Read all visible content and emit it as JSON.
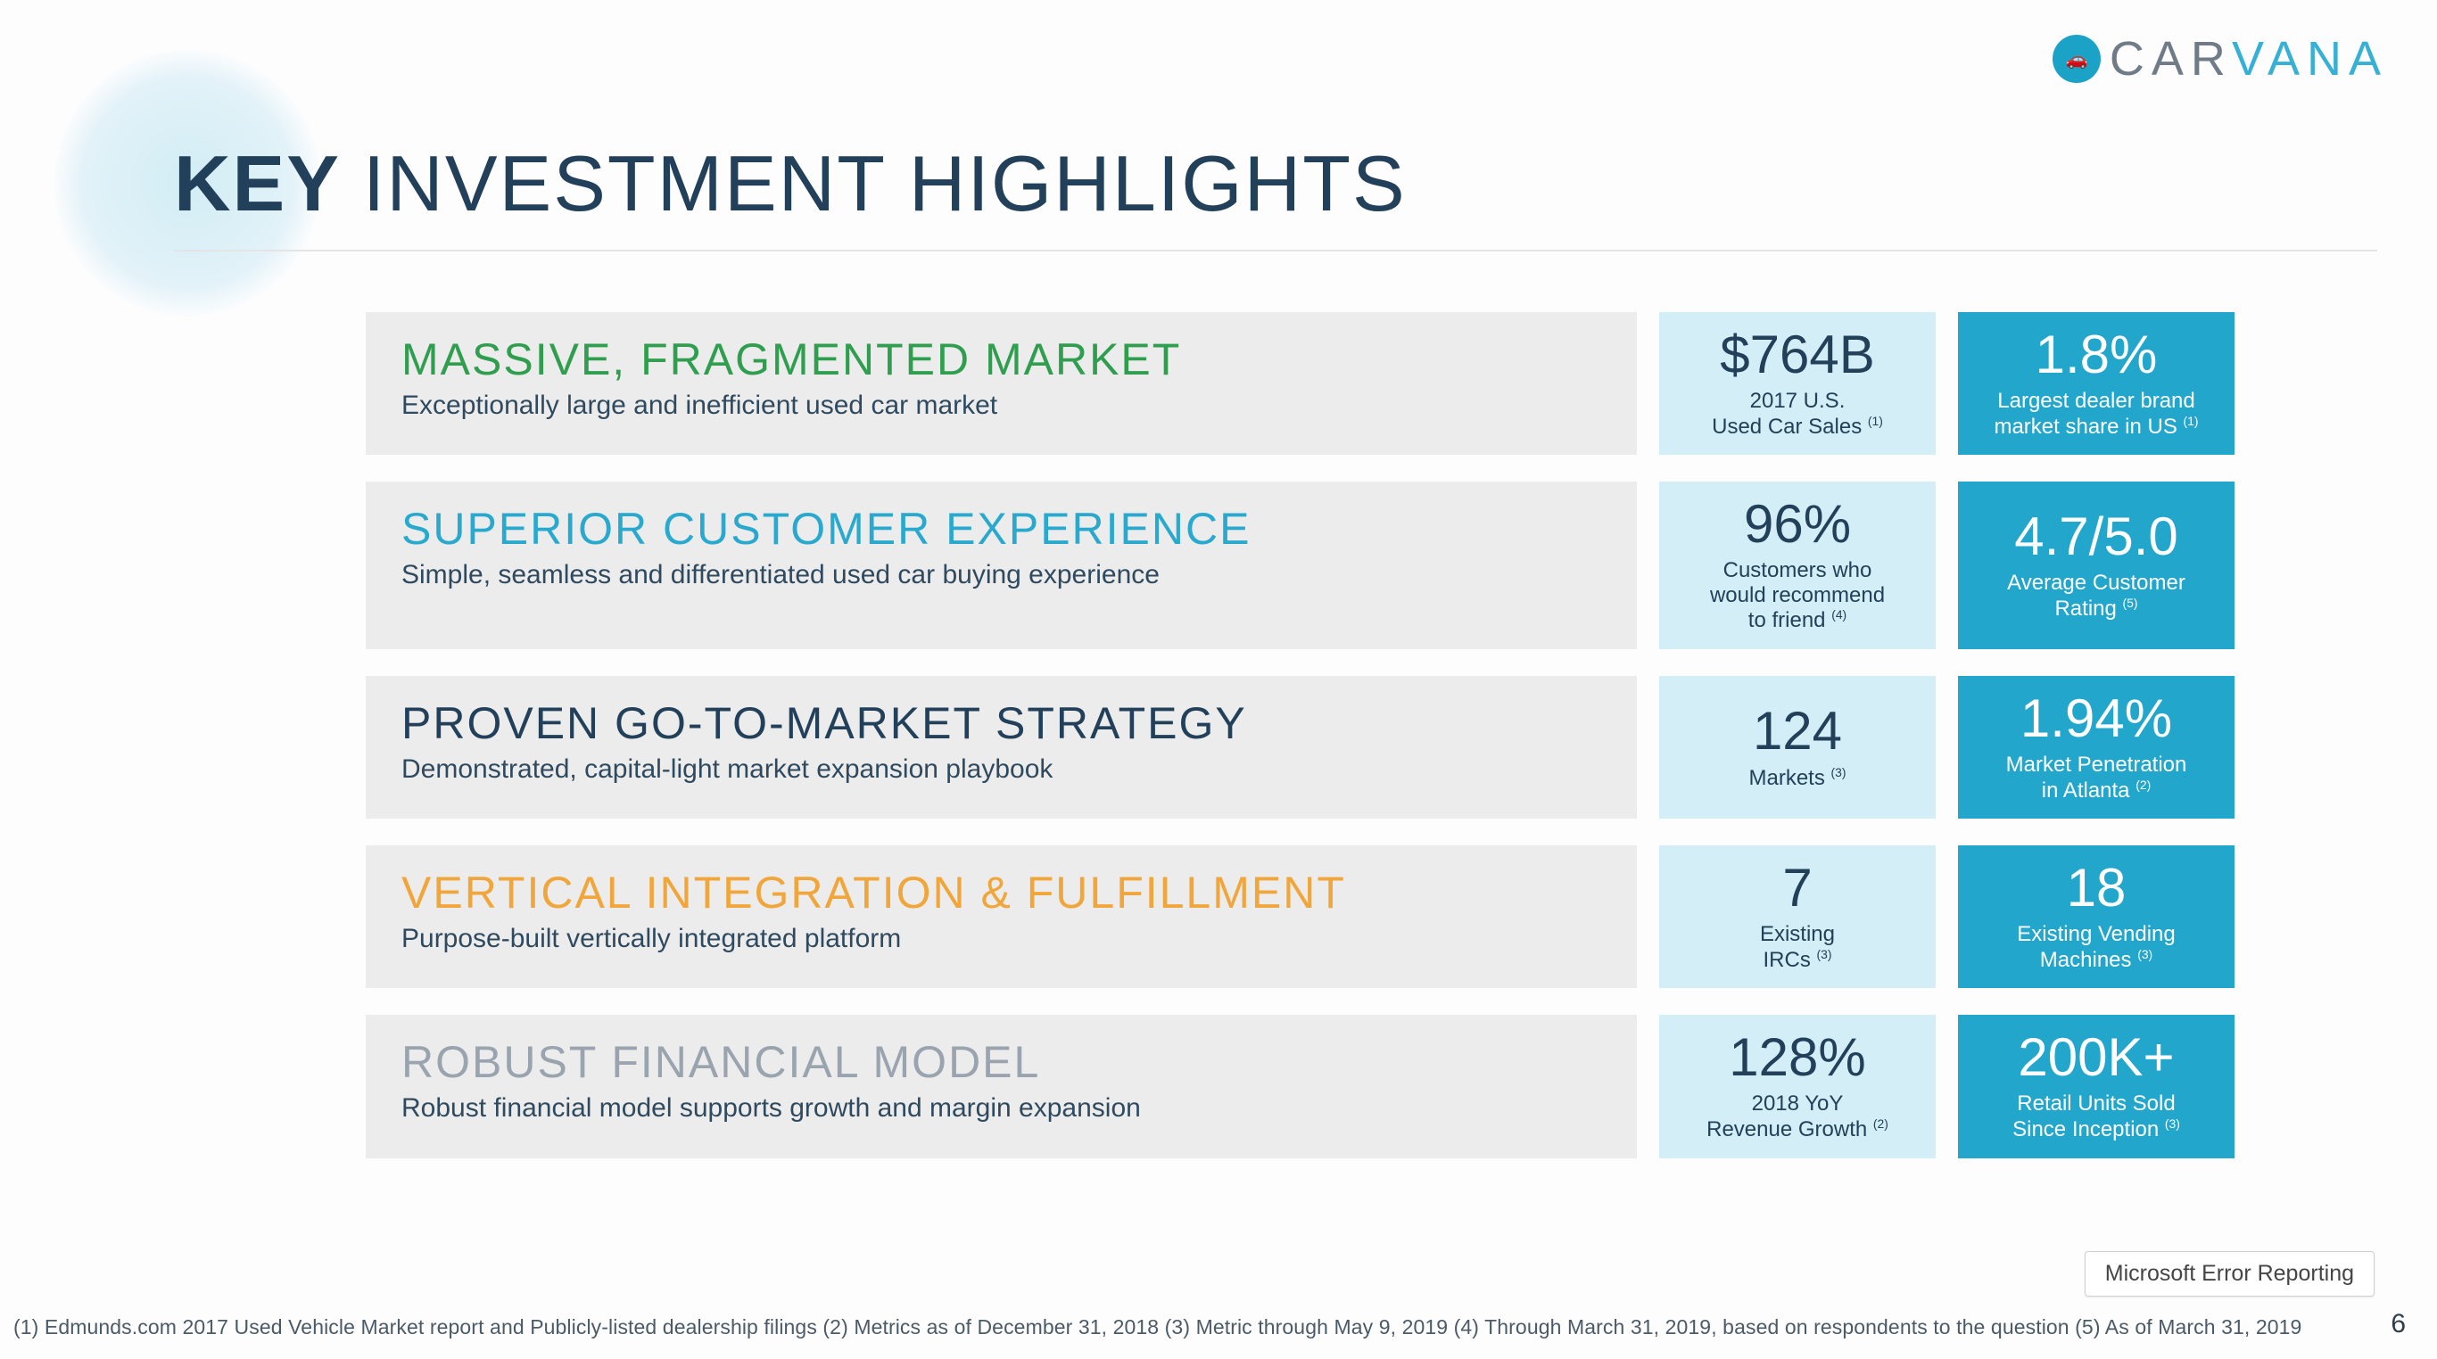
{
  "brand": {
    "name_gray": "CAR",
    "name_blue": "VANA"
  },
  "page_title": {
    "bold": "KEY ",
    "rest": "INVESTMENT HIGHLIGHTS"
  },
  "accent_colors": {
    "row1": "#2f9e4e",
    "row2": "#29a9cd",
    "row3": "#22405a",
    "row4": "#f0a63b",
    "row5": "#9aa4ae"
  },
  "rows": [
    {
      "title": "MASSIVE, FRAGMENTED MARKET",
      "sub": "Exceptionally large and inefficient used car market",
      "stat1": {
        "val": "$764B",
        "lab": "2017 U.S.\nUsed Car Sales ",
        "sup": "(1)"
      },
      "stat2": {
        "val": "1.8%",
        "lab": "Largest dealer brand\nmarket share in US ",
        "sup": "(1)"
      }
    },
    {
      "title": "SUPERIOR CUSTOMER EXPERIENCE",
      "sub": "Simple, seamless and differentiated used car buying experience",
      "stat1": {
        "val": "96%",
        "lab": "Customers who\nwould recommend\nto friend ",
        "sup": "(4)"
      },
      "stat2": {
        "val": "4.7/5.0",
        "lab": "Average Customer\nRating ",
        "sup": "(5)"
      }
    },
    {
      "title": "PROVEN GO-TO-MARKET STRATEGY",
      "sub": "Demonstrated, capital-light market expansion playbook",
      "stat1": {
        "val": "124",
        "lab": "Markets ",
        "sup": "(3)"
      },
      "stat2": {
        "val": "1.94%",
        "lab": "Market Penetration\nin Atlanta ",
        "sup": "(2)"
      }
    },
    {
      "title": "VERTICAL INTEGRATION & FULFILLMENT",
      "sub": "Purpose-built vertically integrated platform",
      "stat1": {
        "val": "7",
        "lab": "Existing\nIRCs ",
        "sup": "(3)"
      },
      "stat2": {
        "val": "18",
        "lab": "Existing Vending\nMachines ",
        "sup": "(3)"
      }
    },
    {
      "title": "ROBUST FINANCIAL MODEL",
      "sub": "Robust financial model supports growth and margin expansion",
      "stat1": {
        "val": "128%",
        "lab": "2018 YoY\nRevenue Growth ",
        "sup": "(2)"
      },
      "stat2": {
        "val": "200K+",
        "lab": "Retail Units Sold\nSince Inception ",
        "sup": "(3)"
      }
    }
  ],
  "footnotes": "(1)  Edmunds.com 2017 Used Vehicle Market report and Publicly-listed dealership filings   (2) Metrics as of December 31, 2018   (3) Metric through May 9, 2019   (4) Through March 31, 2019, based on respondents to the question   (5) As of March 31, 2019",
  "error_button": "Microsoft Error Reporting",
  "page_number": "6"
}
